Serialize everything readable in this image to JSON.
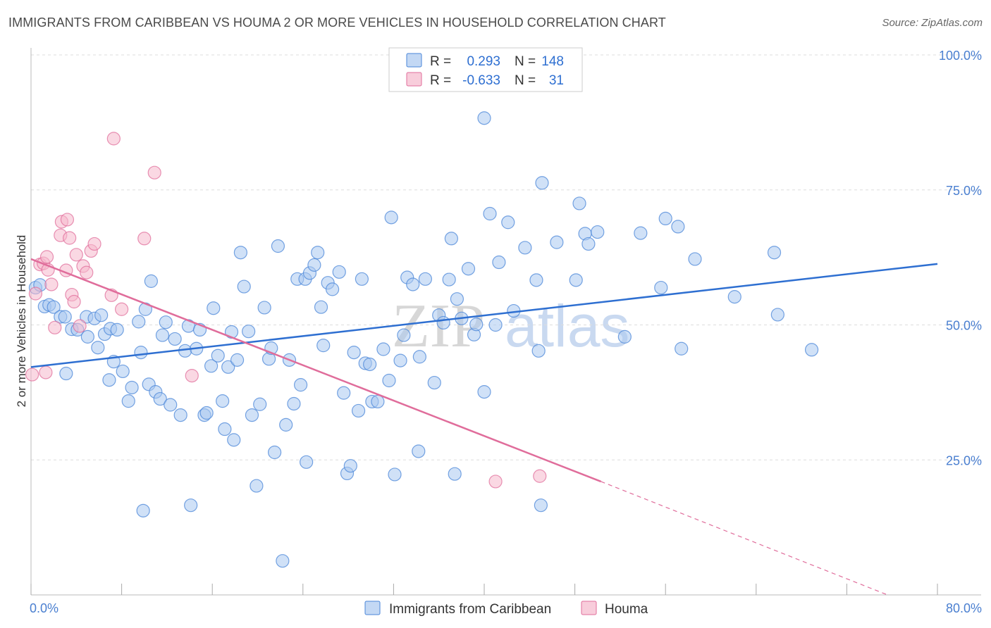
{
  "title": "IMMIGRANTS FROM CARIBBEAN VS HOUMA 2 OR MORE VEHICLES IN HOUSEHOLD CORRELATION CHART",
  "source": "Source: ZipAtlas.com",
  "watermark": {
    "zip": "ZIP",
    "atlas": "atlas"
  },
  "legend_box": {
    "rows": [
      {
        "r_label": "R =",
        "r_value": "0.293",
        "n_label": "N =",
        "n_value": "148",
        "color": "#a9c8f0"
      },
      {
        "r_label": "R =",
        "r_value": "-0.633",
        "n_label": "N =",
        "n_value": "31",
        "color": "#f5b8cc"
      }
    ]
  },
  "bottom_legend": [
    {
      "label": "Immigrants from Caribbean",
      "color": "#a9c8f0"
    },
    {
      "label": "Houma",
      "color": "#f5b8cc"
    }
  ],
  "chart_data": {
    "type": "scatter",
    "title": "IMMIGRANTS FROM CARIBBEAN VS HOUMA 2 OR MORE VEHICLES IN HOUSEHOLD CORRELATION CHART",
    "xlabel": "",
    "ylabel": "2 or more Vehicles in Household",
    "xlim": [
      0,
      80
    ],
    "ylim": [
      0,
      100
    ],
    "x_tick_labels": [
      "0.0%",
      "80.0%"
    ],
    "y_tick_labels": [
      "25.0%",
      "50.0%",
      "75.0%",
      "100.0%"
    ],
    "y_ticks": [
      25,
      50,
      75,
      100
    ],
    "grid": true,
    "legend_position": "top-center",
    "colors": {
      "blue": "#4a86d8",
      "blue_fill": "#a9c8f0",
      "pink": "#e06d9b",
      "pink_fill": "#f5b8cc",
      "trend_blue": "#2e6fd1",
      "trend_pink": "#e06d9b"
    },
    "series": [
      {
        "name": "Immigrants from Caribbean",
        "color": "#4a86d8",
        "trend": {
          "x0": 0,
          "y0": 42.2,
          "x1": 80,
          "y1": 61.3
        },
        "points": [
          [
            0.4,
            56.9
          ],
          [
            0.8,
            57.4
          ],
          [
            1.2,
            53.4
          ],
          [
            1.6,
            53.7
          ],
          [
            2.0,
            53.3
          ],
          [
            2.6,
            51.5
          ],
          [
            3.0,
            51.5
          ],
          [
            3.1,
            41.0
          ],
          [
            3.6,
            49.2
          ],
          [
            4.1,
            49.1
          ],
          [
            4.9,
            51.5
          ],
          [
            5.0,
            47.8
          ],
          [
            5.6,
            51.2
          ],
          [
            5.9,
            45.8
          ],
          [
            6.2,
            51.8
          ],
          [
            6.5,
            48.3
          ],
          [
            6.9,
            39.8
          ],
          [
            7.0,
            49.3
          ],
          [
            7.3,
            43.2
          ],
          [
            7.6,
            49.1
          ],
          [
            8.1,
            41.4
          ],
          [
            8.6,
            35.9
          ],
          [
            8.9,
            38.4
          ],
          [
            9.5,
            50.6
          ],
          [
            9.7,
            44.9
          ],
          [
            9.9,
            15.6
          ],
          [
            10.1,
            52.9
          ],
          [
            10.4,
            39.0
          ],
          [
            10.6,
            58.1
          ],
          [
            11.0,
            37.6
          ],
          [
            11.4,
            36.3
          ],
          [
            11.6,
            48.1
          ],
          [
            11.9,
            50.5
          ],
          [
            12.3,
            35.2
          ],
          [
            12.7,
            47.4
          ],
          [
            13.2,
            33.3
          ],
          [
            13.6,
            45.2
          ],
          [
            13.9,
            49.8
          ],
          [
            14.1,
            16.6
          ],
          [
            14.6,
            45.6
          ],
          [
            14.9,
            49.1
          ],
          [
            15.3,
            33.3
          ],
          [
            15.5,
            33.7
          ],
          [
            15.9,
            42.4
          ],
          [
            16.1,
            53.1
          ],
          [
            16.5,
            44.3
          ],
          [
            16.9,
            35.9
          ],
          [
            17.1,
            30.7
          ],
          [
            17.4,
            42.2
          ],
          [
            17.7,
            48.7
          ],
          [
            17.9,
            28.7
          ],
          [
            18.2,
            43.5
          ],
          [
            18.5,
            63.4
          ],
          [
            18.8,
            57.1
          ],
          [
            19.2,
            48.8
          ],
          [
            19.5,
            33.3
          ],
          [
            19.9,
            20.2
          ],
          [
            20.2,
            35.3
          ],
          [
            20.6,
            53.2
          ],
          [
            21.0,
            43.7
          ],
          [
            21.2,
            45.7
          ],
          [
            21.5,
            26.4
          ],
          [
            21.8,
            64.6
          ],
          [
            22.2,
            6.3
          ],
          [
            22.5,
            31.5
          ],
          [
            22.8,
            43.5
          ],
          [
            23.2,
            35.4
          ],
          [
            23.5,
            58.5
          ],
          [
            23.8,
            38.9
          ],
          [
            24.2,
            58.5
          ],
          [
            24.3,
            24.6
          ],
          [
            24.6,
            59.6
          ],
          [
            25.0,
            61.1
          ],
          [
            25.3,
            63.4
          ],
          [
            25.6,
            53.3
          ],
          [
            25.8,
            46.2
          ],
          [
            26.2,
            57.8
          ],
          [
            26.6,
            56.6
          ],
          [
            27.2,
            59.8
          ],
          [
            27.6,
            37.4
          ],
          [
            27.9,
            22.5
          ],
          [
            28.2,
            23.9
          ],
          [
            28.5,
            44.9
          ],
          [
            28.9,
            34.1
          ],
          [
            29.2,
            58.5
          ],
          [
            29.5,
            42.9
          ],
          [
            29.9,
            42.7
          ],
          [
            30.1,
            35.8
          ],
          [
            30.6,
            35.8
          ],
          [
            31.1,
            45.5
          ],
          [
            31.6,
            39.7
          ],
          [
            31.8,
            69.9
          ],
          [
            32.1,
            22.3
          ],
          [
            32.6,
            43.4
          ],
          [
            32.9,
            48.1
          ],
          [
            33.2,
            58.8
          ],
          [
            33.7,
            57.5
          ],
          [
            34.3,
            44.1
          ],
          [
            34.2,
            26.6
          ],
          [
            34.8,
            58.5
          ],
          [
            35.6,
            39.3
          ],
          [
            36.0,
            51.8
          ],
          [
            36.4,
            50.4
          ],
          [
            36.9,
            58.4
          ],
          [
            37.1,
            66.0
          ],
          [
            37.4,
            22.4
          ],
          [
            37.6,
            54.8
          ],
          [
            38.0,
            51.2
          ],
          [
            38.6,
            60.4
          ],
          [
            39.1,
            48.2
          ],
          [
            39.3,
            50.1
          ],
          [
            40.0,
            37.6
          ],
          [
            40.0,
            88.3
          ],
          [
            40.5,
            70.6
          ],
          [
            41.0,
            50.0
          ],
          [
            41.3,
            61.6
          ],
          [
            42.1,
            69.0
          ],
          [
            42.6,
            52.6
          ],
          [
            43.6,
            64.3
          ],
          [
            44.6,
            58.3
          ],
          [
            44.8,
            45.2
          ],
          [
            45.0,
            16.6
          ],
          [
            45.1,
            76.3
          ],
          [
            46.4,
            65.3
          ],
          [
            48.1,
            58.3
          ],
          [
            48.4,
            72.5
          ],
          [
            48.9,
            66.9
          ],
          [
            49.2,
            65.0
          ],
          [
            50.0,
            67.2
          ],
          [
            52.4,
            47.8
          ],
          [
            53.8,
            67.0
          ],
          [
            55.6,
            56.9
          ],
          [
            56.0,
            69.7
          ],
          [
            57.1,
            68.2
          ],
          [
            57.4,
            45.6
          ],
          [
            58.6,
            62.2
          ],
          [
            62.1,
            55.2
          ],
          [
            65.6,
            63.4
          ],
          [
            65.9,
            51.9
          ],
          [
            68.9,
            45.4
          ]
        ]
      },
      {
        "name": "Houma",
        "color": "#e06d9b",
        "trend": {
          "x0": 0,
          "y0": 62.2,
          "x1": 50.3,
          "y1": 21.0
        },
        "trend_dashed": {
          "x0": 50.3,
          "y0": 21.0,
          "x1": 75.6,
          "y1": 0.0
        },
        "points": [
          [
            0.1,
            40.8
          ],
          [
            0.4,
            55.8
          ],
          [
            0.8,
            61.2
          ],
          [
            1.1,
            61.4
          ],
          [
            1.3,
            41.2
          ],
          [
            1.4,
            62.6
          ],
          [
            1.5,
            60.2
          ],
          [
            1.8,
            57.5
          ],
          [
            2.1,
            49.5
          ],
          [
            2.6,
            66.6
          ],
          [
            2.7,
            69.1
          ],
          [
            3.1,
            60.1
          ],
          [
            3.2,
            69.5
          ],
          [
            3.4,
            66.1
          ],
          [
            3.6,
            55.6
          ],
          [
            3.8,
            54.3
          ],
          [
            4.0,
            63.0
          ],
          [
            4.3,
            49.8
          ],
          [
            4.6,
            60.9
          ],
          [
            4.9,
            59.7
          ],
          [
            5.3,
            63.7
          ],
          [
            5.6,
            65.0
          ],
          [
            7.1,
            55.5
          ],
          [
            7.3,
            84.5
          ],
          [
            8.0,
            52.9
          ],
          [
            10.0,
            66.0
          ],
          [
            10.9,
            78.2
          ],
          [
            14.2,
            40.6
          ],
          [
            41.0,
            21.0
          ],
          [
            44.9,
            22.0
          ]
        ]
      }
    ]
  }
}
